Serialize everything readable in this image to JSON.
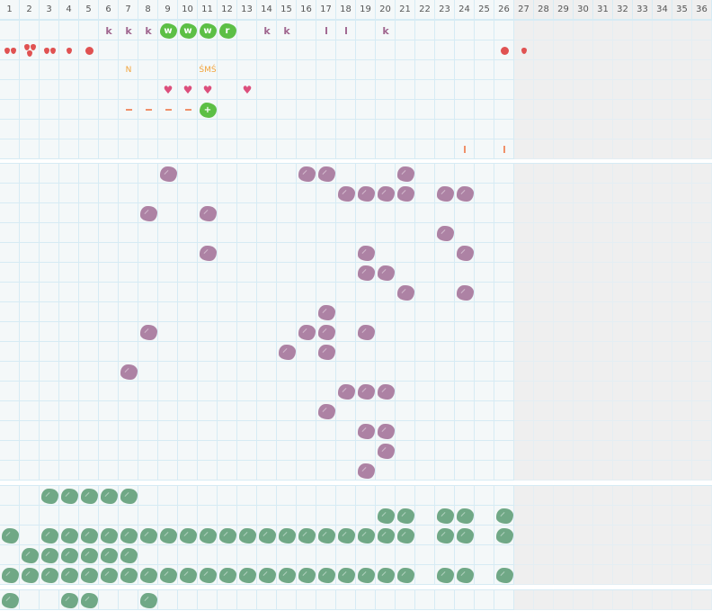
{
  "colors": {
    "purple": "#ad82a4",
    "green_tile": "#70a886",
    "bright_green": "#5cbf45",
    "red": "#e05252",
    "pink": "#dc4f7c",
    "orange_text": "#f2a33a",
    "dash": "#f0906a",
    "k_text": "#a0668f"
  },
  "header": {
    "columns": [
      "1",
      "2",
      "3",
      "4",
      "5",
      "6",
      "7",
      "8",
      "9",
      "10",
      "11",
      "12",
      "13",
      "14",
      "15",
      "16",
      "17",
      "18",
      "19",
      "20",
      "21",
      "22",
      "23",
      "24",
      "25",
      "26",
      "27",
      "28",
      "29",
      "30",
      "31",
      "32",
      "33",
      "34",
      "35",
      "36"
    ],
    "active_columns": 26
  },
  "sections": [
    {
      "rows": 7,
      "marks": [
        {
          "r": 1,
          "c": 6,
          "t": "letter",
          "label": "k"
        },
        {
          "r": 1,
          "c": 7,
          "t": "letter",
          "label": "k"
        },
        {
          "r": 1,
          "c": 8,
          "t": "letter",
          "label": "k"
        },
        {
          "r": 1,
          "c": 9,
          "t": "tile",
          "label": "w"
        },
        {
          "r": 1,
          "c": 10,
          "t": "tile",
          "label": "w"
        },
        {
          "r": 1,
          "c": 11,
          "t": "tile",
          "label": "w"
        },
        {
          "r": 1,
          "c": 12,
          "t": "tile",
          "label": "r"
        },
        {
          "r": 1,
          "c": 14,
          "t": "letter",
          "label": "k"
        },
        {
          "r": 1,
          "c": 15,
          "t": "letter",
          "label": "k"
        },
        {
          "r": 1,
          "c": 17,
          "t": "letter",
          "label": "l"
        },
        {
          "r": 1,
          "c": 18,
          "t": "letter",
          "label": "l"
        },
        {
          "r": 1,
          "c": 20,
          "t": "letter",
          "label": "k"
        },
        {
          "r": 2,
          "c": 1,
          "t": "drops",
          "n": 2
        },
        {
          "r": 2,
          "c": 2,
          "t": "drops",
          "n": 3
        },
        {
          "r": 2,
          "c": 3,
          "t": "drops",
          "n": 2
        },
        {
          "r": 2,
          "c": 4,
          "t": "drops",
          "n": 1
        },
        {
          "r": 2,
          "c": 5,
          "t": "dot"
        },
        {
          "r": 2,
          "c": 26,
          "t": "dot"
        },
        {
          "r": 2,
          "c": 27,
          "t": "drops",
          "n": 1
        },
        {
          "r": 3,
          "c": 7,
          "t": "label",
          "label": "N"
        },
        {
          "r": 3,
          "c": 11,
          "t": "label",
          "label": "ŚMŚ"
        },
        {
          "r": 4,
          "c": 9,
          "t": "heart"
        },
        {
          "r": 4,
          "c": 10,
          "t": "heart"
        },
        {
          "r": 4,
          "c": 11,
          "t": "heart"
        },
        {
          "r": 4,
          "c": 13,
          "t": "heart"
        },
        {
          "r": 5,
          "c": 7,
          "t": "dash"
        },
        {
          "r": 5,
          "c": 8,
          "t": "dash"
        },
        {
          "r": 5,
          "c": 9,
          "t": "dash"
        },
        {
          "r": 5,
          "c": 10,
          "t": "dash"
        },
        {
          "r": 5,
          "c": 11,
          "t": "tile",
          "label": "+"
        },
        {
          "r": 7,
          "c": 24,
          "t": "bar"
        },
        {
          "r": 7,
          "c": 26,
          "t": "bar"
        }
      ]
    },
    {
      "rows": 16,
      "blob": "purple",
      "cells": [
        [
          9,
          16,
          17,
          21
        ],
        [
          18,
          19,
          20,
          21,
          23,
          24
        ],
        [
          8,
          11
        ],
        [
          23
        ],
        [
          11,
          19,
          24
        ],
        [
          19,
          20
        ],
        [
          21,
          24
        ],
        [
          17
        ],
        [
          8,
          16,
          17,
          19
        ],
        [
          15,
          17
        ],
        [
          7
        ],
        [
          18,
          19,
          20
        ],
        [
          17
        ],
        [
          19,
          20
        ],
        [
          20
        ],
        [
          19
        ]
      ]
    },
    {
      "rows": 5,
      "blob": "green_tile",
      "cells": [
        [
          3,
          4,
          5,
          6,
          7
        ],
        [
          20,
          21,
          23,
          24,
          26
        ],
        [
          1,
          3,
          4,
          5,
          6,
          7,
          8,
          9,
          10,
          11,
          12,
          13,
          14,
          15,
          16,
          17,
          18,
          19,
          20,
          21,
          23,
          24,
          26
        ],
        [
          2,
          3,
          4,
          5,
          6,
          7
        ],
        [
          1,
          2,
          3,
          4,
          5,
          6,
          7,
          8,
          9,
          10,
          11,
          12,
          13,
          14,
          15,
          16,
          17,
          18,
          19,
          20,
          21,
          23,
          24,
          26
        ]
      ]
    },
    {
      "rows": 1,
      "blob": "green_tile",
      "cells": [
        [
          1,
          4,
          5,
          8
        ]
      ]
    }
  ]
}
